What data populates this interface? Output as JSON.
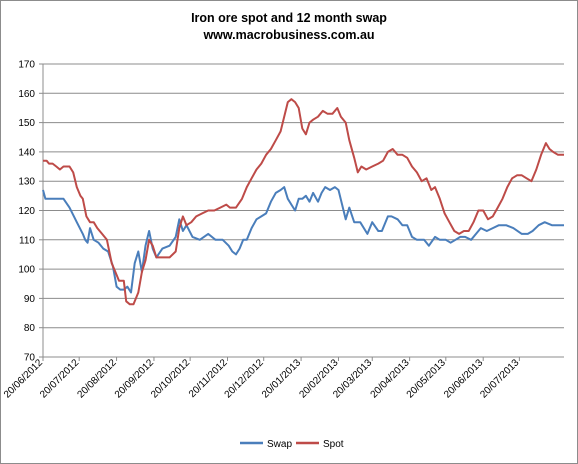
{
  "chart_data": {
    "type": "line",
    "title": "Iron ore spot and 12 month swap",
    "subtitle": "www.macrobusiness.com.au",
    "xlabel": "",
    "ylabel": "",
    "ylim": [
      70,
      170
    ],
    "y_ticks": [
      70,
      80,
      90,
      100,
      110,
      120,
      130,
      140,
      150,
      160,
      170
    ],
    "x_tick_labels": [
      "20/06/2012",
      "20/07/2012",
      "20/08/2012",
      "20/09/2012",
      "20/10/2012",
      "20/11/2012",
      "20/12/2012",
      "20/01/2013",
      "20/02/2013",
      "20/03/2013",
      "20/04/2013",
      "20/05/2013",
      "20/06/2013",
      "20/07/2013"
    ],
    "x_tick_dates": [
      "2012-06-20",
      "2012-07-20",
      "2012-08-20",
      "2012-09-20",
      "2012-10-20",
      "2012-11-20",
      "2012-12-20",
      "2013-01-20",
      "2013-02-20",
      "2013-03-20",
      "2013-04-20",
      "2013-05-20",
      "2013-06-20",
      "2013-07-20"
    ],
    "xlim": [
      "2012-06-20",
      "2013-08-26"
    ],
    "grid": "horizontal",
    "legend_position": "bottom",
    "series": [
      {
        "name": "Swap",
        "color": "#4a7ebb",
        "points": [
          [
            "2012-06-20",
            127
          ],
          [
            "2012-06-22",
            124
          ],
          [
            "2012-06-27",
            124
          ],
          [
            "2012-07-03",
            124
          ],
          [
            "2012-07-07",
            124
          ],
          [
            "2012-07-12",
            121
          ],
          [
            "2012-07-18",
            116
          ],
          [
            "2012-07-23",
            112
          ],
          [
            "2012-07-25",
            110
          ],
          [
            "2012-07-27",
            109
          ],
          [
            "2012-07-29",
            114
          ],
          [
            "2012-08-01",
            110
          ],
          [
            "2012-08-05",
            109
          ],
          [
            "2012-08-09",
            107
          ],
          [
            "2012-08-13",
            106
          ],
          [
            "2012-08-17",
            101
          ],
          [
            "2012-08-20",
            94
          ],
          [
            "2012-08-23",
            93
          ],
          [
            "2012-08-26",
            93
          ],
          [
            "2012-08-29",
            94
          ],
          [
            "2012-09-01",
            92
          ],
          [
            "2012-09-04",
            102
          ],
          [
            "2012-09-07",
            106
          ],
          [
            "2012-09-10",
            99
          ],
          [
            "2012-09-13",
            108
          ],
          [
            "2012-09-16",
            113
          ],
          [
            "2012-09-19",
            107
          ],
          [
            "2012-09-22",
            104
          ],
          [
            "2012-09-27",
            107
          ],
          [
            "2012-10-03",
            108
          ],
          [
            "2012-10-08",
            111
          ],
          [
            "2012-10-11",
            117
          ],
          [
            "2012-10-14",
            113
          ],
          [
            "2012-10-17",
            115
          ],
          [
            "2012-10-22",
            111
          ],
          [
            "2012-10-28",
            110
          ],
          [
            "2012-11-04",
            112
          ],
          [
            "2012-11-10",
            110
          ],
          [
            "2012-11-16",
            110
          ],
          [
            "2012-11-21",
            108
          ],
          [
            "2012-11-24",
            106
          ],
          [
            "2012-11-27",
            105
          ],
          [
            "2012-11-30",
            107
          ],
          [
            "2012-12-03",
            110
          ],
          [
            "2012-12-06",
            110
          ],
          [
            "2012-12-10",
            114
          ],
          [
            "2012-12-14",
            117
          ],
          [
            "2012-12-18",
            118
          ],
          [
            "2012-12-22",
            119
          ],
          [
            "2012-12-26",
            123
          ],
          [
            "2012-12-30",
            126
          ],
          [
            "2013-01-03",
            127
          ],
          [
            "2013-01-06",
            128
          ],
          [
            "2013-01-09",
            124
          ],
          [
            "2013-01-12",
            122
          ],
          [
            "2013-01-15",
            120
          ],
          [
            "2013-01-18",
            124
          ],
          [
            "2013-01-21",
            124
          ],
          [
            "2013-01-24",
            125
          ],
          [
            "2013-01-27",
            123
          ],
          [
            "2013-01-30",
            126
          ],
          [
            "2013-02-03",
            123
          ],
          [
            "2013-02-06",
            126
          ],
          [
            "2013-02-09",
            128
          ],
          [
            "2013-02-13",
            127
          ],
          [
            "2013-02-17",
            128
          ],
          [
            "2013-02-20",
            127
          ],
          [
            "2013-02-23",
            122
          ],
          [
            "2013-02-26",
            117
          ],
          [
            "2013-03-01",
            121
          ],
          [
            "2013-03-05",
            116
          ],
          [
            "2013-03-10",
            116
          ],
          [
            "2013-03-16",
            112
          ],
          [
            "2013-03-20",
            116
          ],
          [
            "2013-03-25",
            113
          ],
          [
            "2013-03-28",
            113
          ],
          [
            "2013-04-02",
            118
          ],
          [
            "2013-04-05",
            118
          ],
          [
            "2013-04-10",
            117
          ],
          [
            "2013-04-14",
            115
          ],
          [
            "2013-04-18",
            115
          ],
          [
            "2013-04-22",
            111
          ],
          [
            "2013-04-26",
            110
          ],
          [
            "2013-05-02",
            110
          ],
          [
            "2013-05-06",
            108
          ],
          [
            "2013-05-11",
            111
          ],
          [
            "2013-05-15",
            110
          ],
          [
            "2013-05-20",
            110
          ],
          [
            "2013-05-24",
            109
          ],
          [
            "2013-05-28",
            110
          ],
          [
            "2013-06-01",
            111
          ],
          [
            "2013-06-05",
            111
          ],
          [
            "2013-06-10",
            110
          ],
          [
            "2013-06-14",
            112
          ],
          [
            "2013-06-18",
            114
          ],
          [
            "2013-06-23",
            113
          ],
          [
            "2013-06-28",
            114
          ],
          [
            "2013-07-03",
            115
          ],
          [
            "2013-07-09",
            115
          ],
          [
            "2013-07-15",
            114
          ],
          [
            "2013-07-22",
            112
          ],
          [
            "2013-07-27",
            112
          ],
          [
            "2013-07-31",
            113
          ],
          [
            "2013-08-05",
            115
          ],
          [
            "2013-08-10",
            116
          ],
          [
            "2013-08-16",
            115
          ],
          [
            "2013-08-22",
            115
          ],
          [
            "2013-08-26",
            115
          ]
        ]
      },
      {
        "name": "Spot",
        "color": "#be4b48",
        "points": [
          [
            "2012-06-20",
            137
          ],
          [
            "2012-06-23",
            137
          ],
          [
            "2012-06-25",
            136
          ],
          [
            "2012-06-28",
            136
          ],
          [
            "2012-07-01",
            135
          ],
          [
            "2012-07-04",
            134
          ],
          [
            "2012-07-07",
            135
          ],
          [
            "2012-07-12",
            135
          ],
          [
            "2012-07-15",
            133
          ],
          [
            "2012-07-18",
            128
          ],
          [
            "2012-07-21",
            125
          ],
          [
            "2012-07-23",
            124
          ],
          [
            "2012-07-26",
            118
          ],
          [
            "2012-07-29",
            116
          ],
          [
            "2012-08-01",
            116
          ],
          [
            "2012-08-04",
            114
          ],
          [
            "2012-08-08",
            112
          ],
          [
            "2012-08-12",
            110
          ],
          [
            "2012-08-16",
            102
          ],
          [
            "2012-08-19",
            99
          ],
          [
            "2012-08-22",
            96
          ],
          [
            "2012-08-26",
            96
          ],
          [
            "2012-08-28",
            89
          ],
          [
            "2012-08-31",
            88
          ],
          [
            "2012-09-03",
            88
          ],
          [
            "2012-09-07",
            92
          ],
          [
            "2012-09-10",
            99
          ],
          [
            "2012-09-13",
            103
          ],
          [
            "2012-09-16",
            110
          ],
          [
            "2012-09-19",
            108
          ],
          [
            "2012-09-22",
            104
          ],
          [
            "2012-09-27",
            104
          ],
          [
            "2012-10-03",
            104
          ],
          [
            "2012-10-08",
            106
          ],
          [
            "2012-10-11",
            114
          ],
          [
            "2012-10-14",
            118
          ],
          [
            "2012-10-17",
            115
          ],
          [
            "2012-10-21",
            116
          ],
          [
            "2012-10-25",
            118
          ],
          [
            "2012-10-30",
            119
          ],
          [
            "2012-11-04",
            120
          ],
          [
            "2012-11-09",
            120
          ],
          [
            "2012-11-14",
            121
          ],
          [
            "2012-11-19",
            122
          ],
          [
            "2012-11-22",
            121
          ],
          [
            "2012-11-27",
            121
          ],
          [
            "2012-12-02",
            124
          ],
          [
            "2012-12-06",
            128
          ],
          [
            "2012-12-10",
            131
          ],
          [
            "2012-12-14",
            134
          ],
          [
            "2012-12-18",
            136
          ],
          [
            "2012-12-22",
            139
          ],
          [
            "2012-12-26",
            141
          ],
          [
            "2012-12-30",
            144
          ],
          [
            "2013-01-03",
            147
          ],
          [
            "2013-01-06",
            152
          ],
          [
            "2013-01-09",
            157
          ],
          [
            "2013-01-12",
            158
          ],
          [
            "2013-01-15",
            157
          ],
          [
            "2013-01-18",
            155
          ],
          [
            "2013-01-21",
            148
          ],
          [
            "2013-01-24",
            146
          ],
          [
            "2013-01-27",
            150
          ],
          [
            "2013-01-30",
            151
          ],
          [
            "2013-02-03",
            152
          ],
          [
            "2013-02-07",
            154
          ],
          [
            "2013-02-11",
            153
          ],
          [
            "2013-02-15",
            153
          ],
          [
            "2013-02-19",
            155
          ],
          [
            "2013-02-22",
            152
          ],
          [
            "2013-02-26",
            150
          ],
          [
            "2013-03-01",
            144
          ],
          [
            "2013-03-05",
            138
          ],
          [
            "2013-03-08",
            133
          ],
          [
            "2013-03-11",
            135
          ],
          [
            "2013-03-15",
            134
          ],
          [
            "2013-03-20",
            135
          ],
          [
            "2013-03-25",
            136
          ],
          [
            "2013-03-29",
            137
          ],
          [
            "2013-04-02",
            140
          ],
          [
            "2013-04-06",
            141
          ],
          [
            "2013-04-10",
            139
          ],
          [
            "2013-04-14",
            139
          ],
          [
            "2013-04-18",
            138
          ],
          [
            "2013-04-22",
            135
          ],
          [
            "2013-04-26",
            133
          ],
          [
            "2013-04-30",
            130
          ],
          [
            "2013-05-04",
            131
          ],
          [
            "2013-05-08",
            127
          ],
          [
            "2013-05-11",
            128
          ],
          [
            "2013-05-15",
            124
          ],
          [
            "2013-05-19",
            119
          ],
          [
            "2013-05-23",
            116
          ],
          [
            "2013-05-27",
            113
          ],
          [
            "2013-05-31",
            112
          ],
          [
            "2013-06-04",
            113
          ],
          [
            "2013-06-08",
            113
          ],
          [
            "2013-06-12",
            116
          ],
          [
            "2013-06-16",
            120
          ],
          [
            "2013-06-20",
            120
          ],
          [
            "2013-06-24",
            117
          ],
          [
            "2013-06-28",
            118
          ],
          [
            "2013-07-02",
            121
          ],
          [
            "2013-07-06",
            124
          ],
          [
            "2013-07-10",
            128
          ],
          [
            "2013-07-14",
            131
          ],
          [
            "2013-07-18",
            132
          ],
          [
            "2013-07-22",
            132
          ],
          [
            "2013-07-26",
            131
          ],
          [
            "2013-07-30",
            130
          ],
          [
            "2013-08-03",
            134
          ],
          [
            "2013-08-07",
            139
          ],
          [
            "2013-08-11",
            143
          ],
          [
            "2013-08-14",
            141
          ],
          [
            "2013-08-17",
            140
          ],
          [
            "2013-08-21",
            139
          ],
          [
            "2013-08-26",
            139
          ]
        ]
      }
    ]
  }
}
